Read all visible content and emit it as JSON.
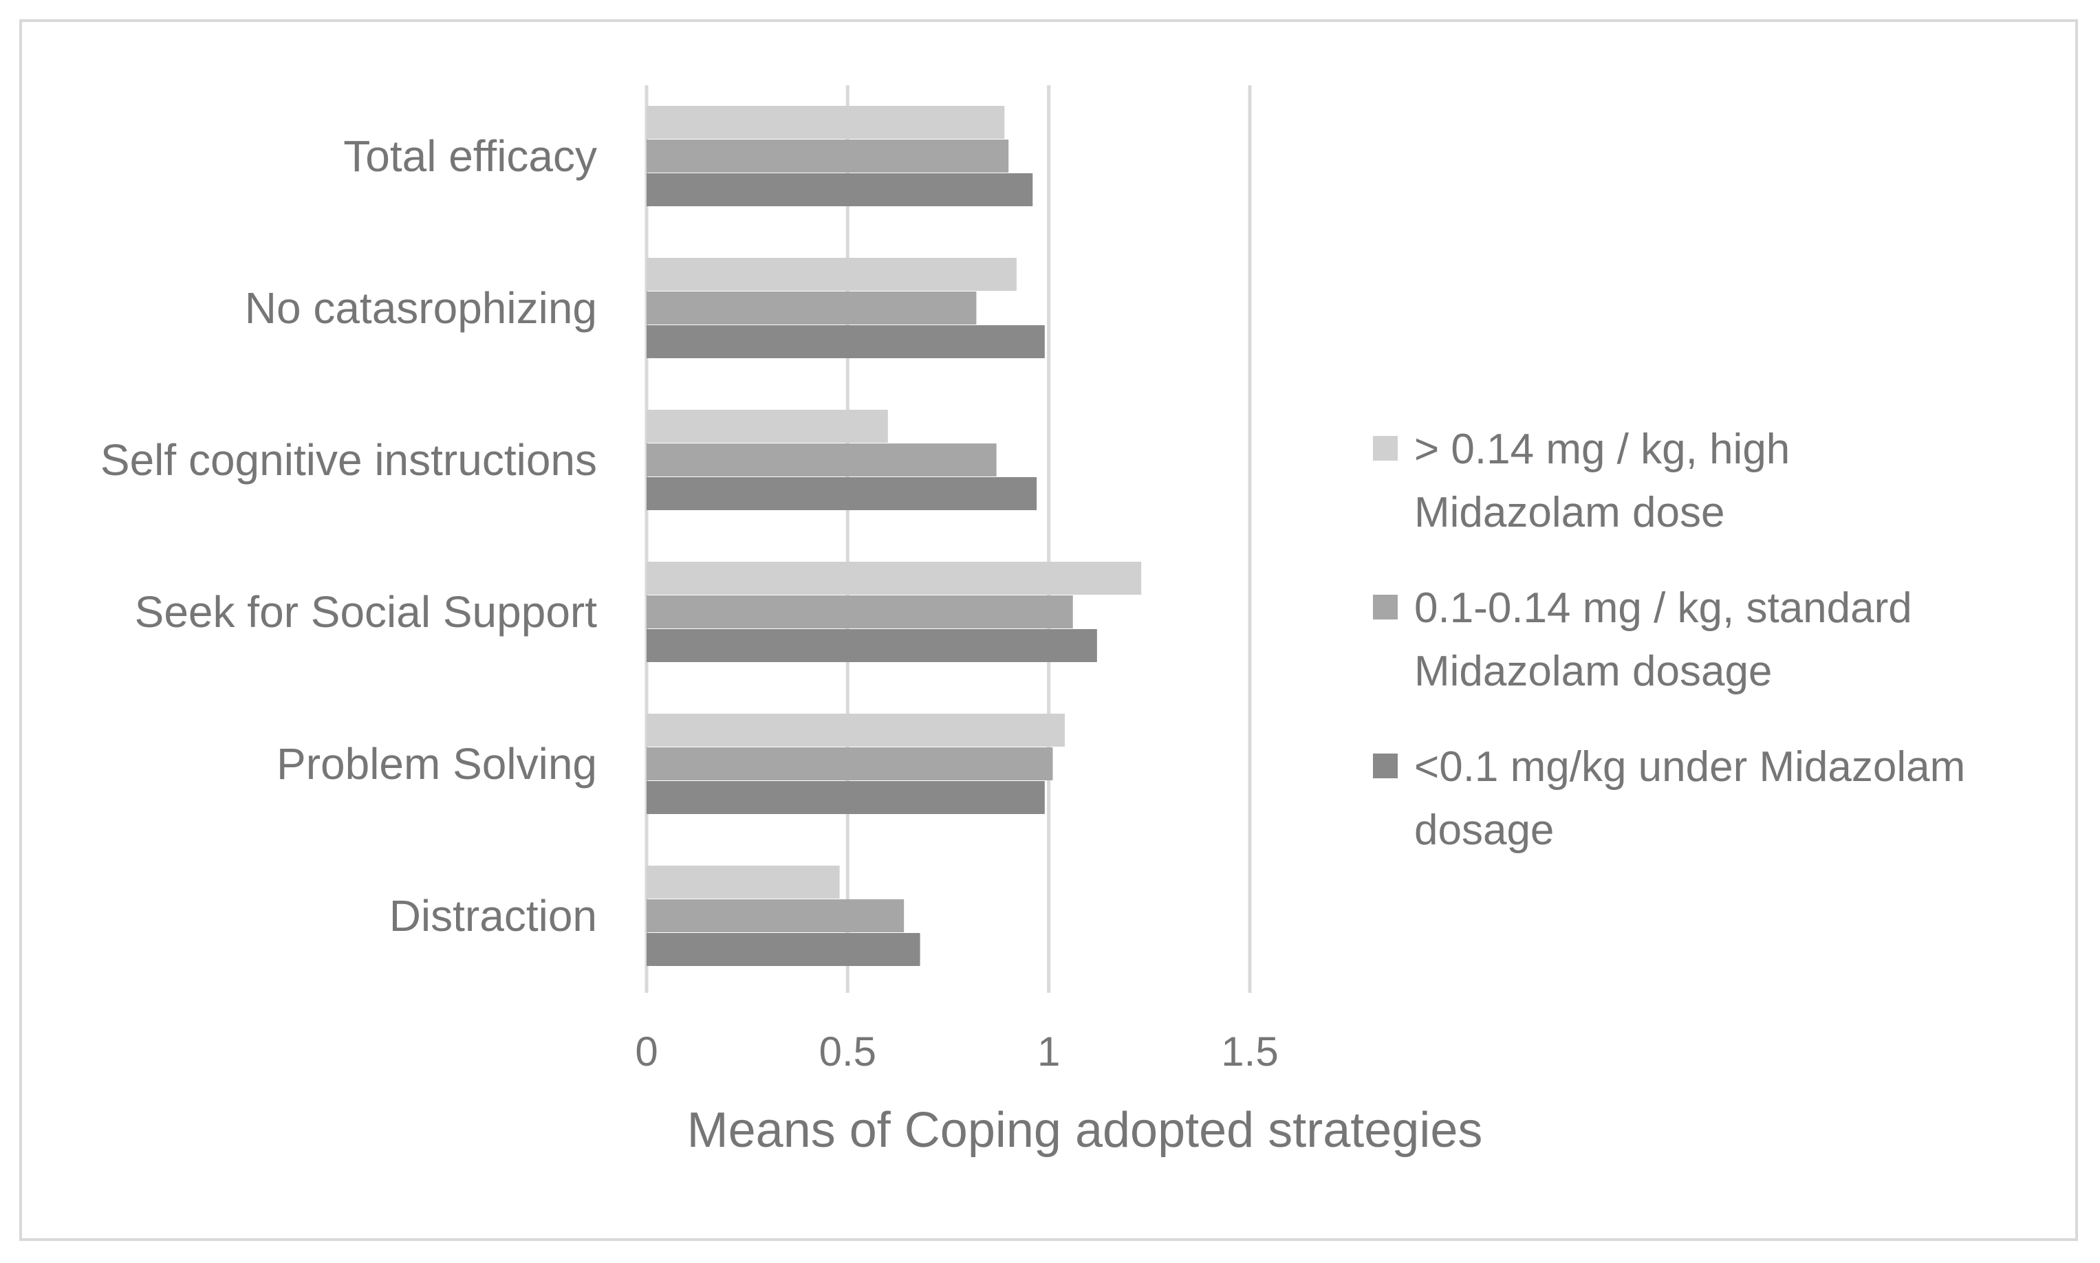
{
  "chart_data": {
    "type": "bar",
    "orientation": "horizontal",
    "categories": [
      "Total efficacy",
      "No catasrophizing",
      "Self cognitive instructions",
      "Seek for Social Support",
      "Problem Solving",
      "Distraction"
    ],
    "series": [
      {
        "name": "> 0.14 mg / kg, high Midazolam dose",
        "legend_lines": [
          "> 0.14 mg / kg, high",
          "Midazolam dose"
        ],
        "color": "#d0d0d0",
        "values": [
          0.89,
          0.92,
          0.6,
          1.23,
          1.04,
          0.48
        ]
      },
      {
        "name": "0.1-0.14 mg / kg, standard Midazolam dosage",
        "legend_lines": [
          "0.1-0.14 mg / kg, standard",
          "Midazolam dosage"
        ],
        "color": "#a6a6a6",
        "values": [
          0.9,
          0.82,
          0.87,
          1.06,
          1.01,
          0.64
        ]
      },
      {
        "name": "<0.1 mg/kg under Midazolam dosage",
        "legend_lines": [
          "<0.1 mg/kg under Midazolam",
          "dosage"
        ],
        "color": "#898989",
        "values": [
          0.96,
          0.99,
          0.97,
          1.12,
          0.99,
          0.68
        ]
      }
    ],
    "xlim": [
      0,
      1.5
    ],
    "xticks": [
      0,
      0.5,
      1,
      1.5
    ],
    "xtick_labels": [
      "0",
      "0.5",
      "1",
      "1.5"
    ],
    "xlabel": "Means of Coping adopted strategies",
    "ylabel": "",
    "title": "",
    "grid": true,
    "legend_position": "right"
  }
}
